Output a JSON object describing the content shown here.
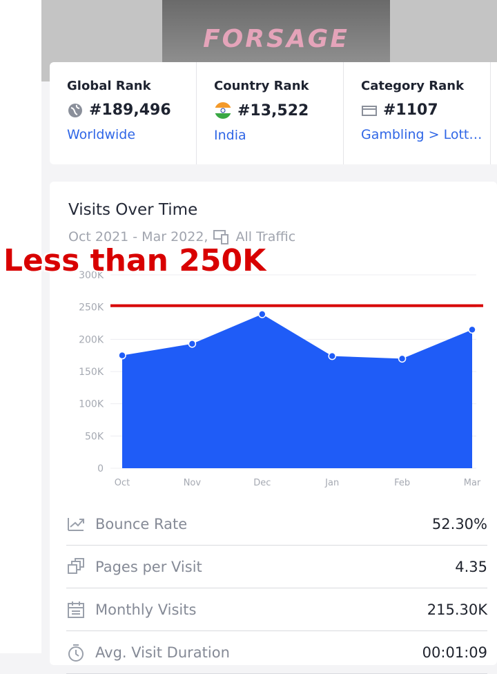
{
  "header": {
    "logo": "FORSAGE"
  },
  "ranks": [
    {
      "title": "Global Rank",
      "value": "#189,496",
      "sub": "Worldwide"
    },
    {
      "title": "Country Rank",
      "value": "#13,522",
      "sub": "India"
    },
    {
      "title": "Category Rank",
      "value": "#1107",
      "sub": "Gambling > Lotteries"
    }
  ],
  "chart_data": {
    "type": "area",
    "title": "Visits Over Time",
    "subtitle": "Oct 2021 - Mar 2022,",
    "traffic": "All Traffic",
    "annotation": "Less than 250K",
    "reference_line": 250000,
    "reference_color": "#d80000",
    "categories": [
      "Oct",
      "Nov",
      "Dec",
      "Jan",
      "Feb",
      "Mar"
    ],
    "values": [
      175000,
      193000,
      239000,
      174000,
      170000,
      215000
    ],
    "color": "#1f5cf7",
    "ylim": [
      0,
      300000
    ],
    "yticks": [
      0,
      {
        "value": 50000,
        "label": "50K"
      },
      {
        "value": 100000,
        "label": "100K"
      },
      {
        "value": 150000,
        "label": "150K"
      },
      {
        "value": 200000,
        "label": "200K"
      },
      {
        "value": 250000,
        "label": "250K"
      },
      {
        "value": 300000,
        "label": "300K"
      }
    ],
    "grid": true
  },
  "metrics": [
    {
      "label": "Bounce Rate",
      "value": "52.30%"
    },
    {
      "label": "Pages per Visit",
      "value": "4.35"
    },
    {
      "label": "Monthly Visits",
      "value": "215.30K"
    },
    {
      "label": "Avg. Visit Duration",
      "value": "00:01:09"
    }
  ]
}
